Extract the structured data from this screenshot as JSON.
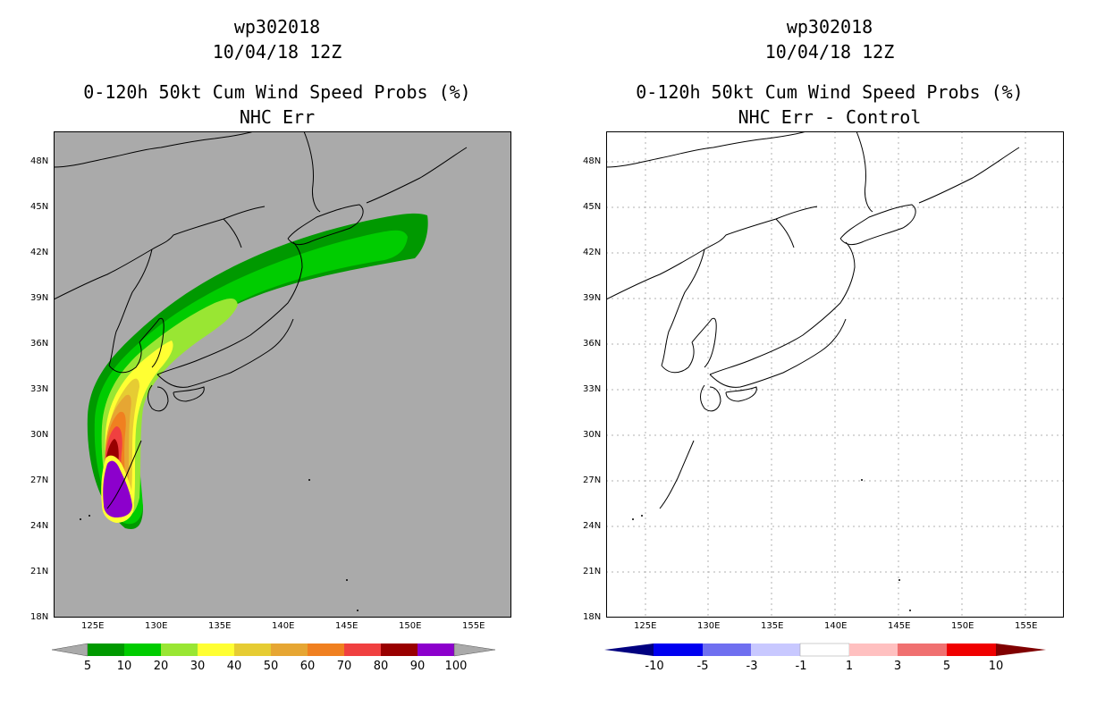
{
  "left_panel": {
    "title_line1": "wp302018",
    "title_line2": "10/04/18 12Z",
    "title_line3": "0-120h 50kt Cum Wind Speed Probs (%)",
    "title_line4": "NHC Err",
    "background_color": "#aaaaaa",
    "colorbar": {
      "labels": [
        "5",
        "10",
        "20",
        "30",
        "40",
        "50",
        "60",
        "70",
        "80",
        "90",
        "100"
      ],
      "colors": [
        "#aaaaaa",
        "#009900",
        "#00cc00",
        "#99e633",
        "#ffff33",
        "#e6cc33",
        "#e6a633",
        "#f08020",
        "#f04040",
        "#990000",
        "#8c00cc",
        "#aaaaaa"
      ]
    }
  },
  "right_panel": {
    "title_line1": "wp302018",
    "title_line2": "10/04/18 12Z",
    "title_line3": "0-120h 50kt Cum Wind Speed Probs (%)",
    "title_line4": "NHC Err - Control",
    "background_color": "#ffffff",
    "colorbar": {
      "labels": [
        "-10",
        "-5",
        "-3",
        "-1",
        "1",
        "3",
        "5",
        "10"
      ],
      "colors": [
        "#000080",
        "#0000f0",
        "#6f6ff0",
        "#c8c8ff",
        "#ffffff",
        "#ffc0c0",
        "#f07070",
        "#f00000",
        "#800000"
      ]
    }
  },
  "axes": {
    "lon_labels": [
      "125E",
      "130E",
      "135E",
      "140E",
      "145E",
      "150E",
      "155E"
    ],
    "lat_labels": [
      "48N",
      "45N",
      "42N",
      "39N",
      "36N",
      "33N",
      "30N",
      "27N",
      "24N",
      "21N",
      "18N"
    ]
  }
}
